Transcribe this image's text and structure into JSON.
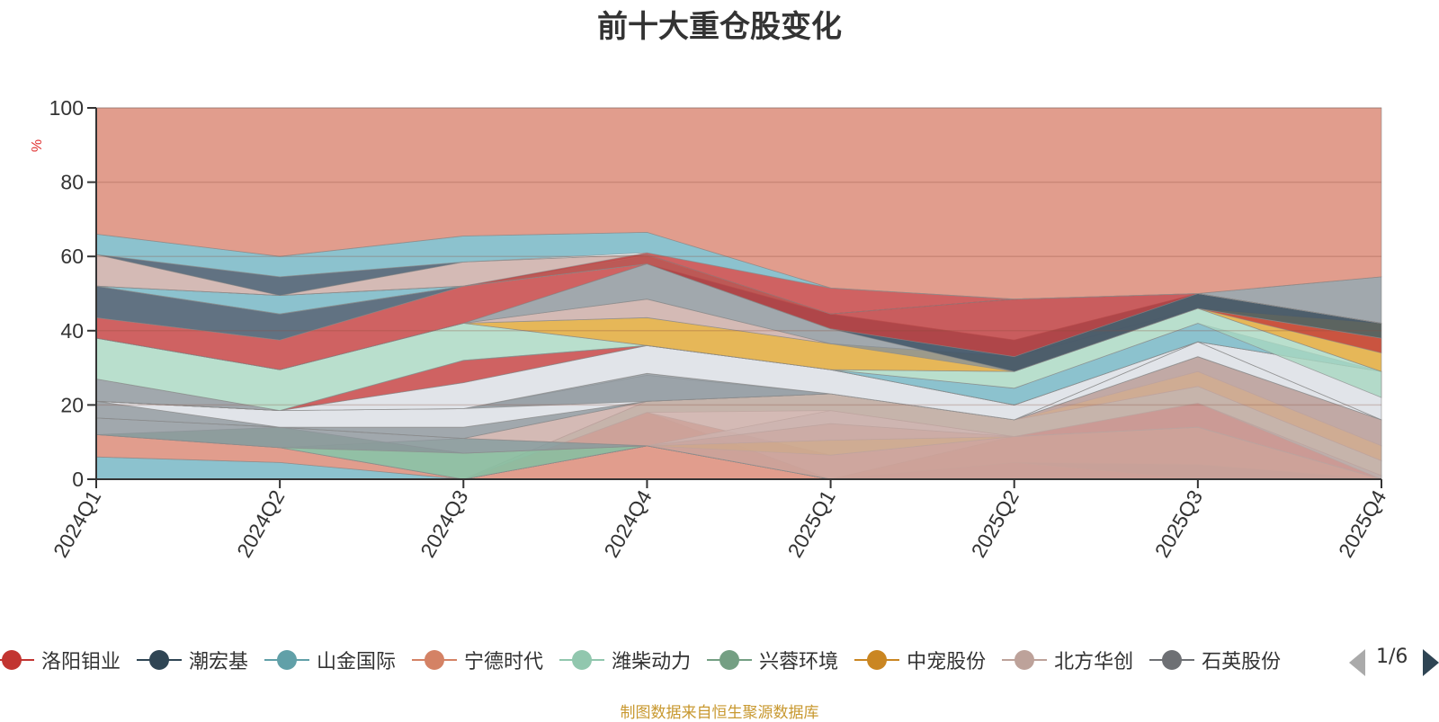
{
  "chart_data": {
    "type": "area",
    "title": "前十大重仓股变化",
    "ylabel": "%",
    "ylim": [
      0,
      100
    ],
    "yticks": [
      0,
      20,
      40,
      60,
      80,
      100
    ],
    "categories": [
      "2024Q1",
      "2024Q2",
      "2024Q3",
      "2024Q4",
      "2025Q1",
      "2025Q2",
      "2025Q3",
      "2025Q4"
    ],
    "grid": true,
    "stacked": true,
    "bands": [
      {
        "color": "#6fb3c2",
        "lower": [
          0,
          0,
          0,
          9,
          0,
          0,
          0,
          0
        ],
        "upper": [
          6,
          4.5,
          0,
          9,
          0,
          0,
          0,
          0
        ]
      },
      {
        "color": "#da8470",
        "lower": [
          6,
          4.5,
          0,
          9,
          0,
          0,
          0,
          0
        ],
        "upper": [
          12,
          8.5,
          0,
          9,
          0,
          0,
          0,
          0
        ]
      },
      {
        "color": "#c33b3b",
        "lower": [
          0,
          0,
          0,
          9,
          0,
          0,
          0,
          0
        ],
        "upper": [
          0,
          0,
          0,
          9,
          0,
          4.5,
          0,
          0
        ]
      },
      {
        "color": "#3a4f63",
        "lower": [
          0,
          0,
          0,
          9,
          0,
          4.5,
          0,
          0
        ],
        "upper": [
          0,
          0,
          0,
          9,
          0,
          4.5,
          4,
          0
        ]
      },
      {
        "color": "#da8470",
        "lower": [
          0,
          0,
          0,
          9,
          0,
          4.5,
          4,
          0
        ],
        "upper": [
          0,
          0,
          0,
          9,
          0,
          11.5,
          14,
          0
        ]
      },
      {
        "color": "#da8470",
        "lower": [
          0,
          0,
          0,
          9,
          0,
          11.5,
          14,
          0
        ],
        "upper": [
          0,
          0,
          0,
          9,
          0,
          11.5,
          14,
          0
        ]
      },
      {
        "color": "#c33b3b",
        "lower": [
          0,
          0,
          0,
          9,
          0,
          11.5,
          14,
          0
        ],
        "upper": [
          0,
          0,
          0,
          9,
          0,
          11.5,
          20.5,
          0
        ]
      },
      {
        "color": "#6fb3c2",
        "lower": [
          0,
          0,
          0,
          9,
          0,
          11.5,
          20.5,
          0
        ],
        "upper": [
          0,
          0,
          0,
          9,
          0,
          11.5,
          20.5,
          1
        ]
      },
      {
        "color": "#da8470",
        "lower": [
          0,
          0,
          0,
          0,
          0,
          0,
          0,
          0
        ],
        "upper": [
          0,
          0,
          0,
          9,
          0,
          0,
          0,
          0
        ]
      },
      {
        "color": "#da8470",
        "lower": [
          0,
          0,
          0,
          9,
          0,
          0,
          0,
          0
        ],
        "upper": [
          0,
          0,
          0,
          18,
          0,
          0,
          0,
          0
        ]
      },
      {
        "color": "#da8470",
        "lower": [
          0,
          0,
          0,
          18,
          0,
          0,
          0,
          0
        ],
        "upper": [
          0,
          0,
          0,
          18,
          0,
          0,
          0,
          0
        ]
      },
      {
        "color": "#da8470",
        "lower": [
          0,
          0,
          0,
          9,
          0,
          0,
          0,
          0
        ],
        "upper": [
          0,
          0,
          0,
          18,
          6.5,
          11.5,
          14,
          0
        ]
      },
      {
        "color": "#e0a52e",
        "lower": [
          0,
          0,
          0,
          9,
          6.5,
          11.5,
          14,
          0
        ],
        "upper": [
          0,
          0,
          0,
          9,
          10.5,
          11.5,
          14,
          0
        ]
      },
      {
        "color": "#c9a9a3",
        "lower": [
          0,
          0,
          0,
          9,
          10.5,
          11.5,
          14,
          0
        ],
        "upper": [
          0,
          0,
          0,
          9,
          15,
          11.5,
          14,
          0
        ]
      },
      {
        "color": "#dadde3",
        "lower": [
          0,
          0,
          0,
          9,
          15,
          11.5,
          14,
          0
        ],
        "upper": [
          0,
          0,
          0,
          9,
          18.5,
          11.5,
          14,
          0
        ]
      },
      {
        "color": "#a7d7c1",
        "lower": [
          0,
          0,
          0,
          18,
          18.5,
          11.5,
          20.5,
          1
        ],
        "upper": [
          0,
          0,
          0,
          21,
          23,
          16,
          25,
          5
        ]
      },
      {
        "color": "#e0a52e",
        "lower": [
          0,
          0,
          0,
          21,
          23,
          16,
          25,
          5
        ],
        "upper": [
          0,
          0,
          0,
          21,
          23,
          16,
          29,
          9
        ]
      },
      {
        "color": "#8a9298",
        "lower": [
          0,
          0,
          0,
          21,
          23,
          16,
          29,
          9
        ],
        "upper": [
          0,
          0,
          0,
          21,
          23,
          16,
          33,
          16
        ]
      },
      {
        "color": "#a7d7c1",
        "lower": [
          12,
          8.5,
          0,
          9,
          0,
          0,
          0,
          0
        ],
        "upper": [
          12,
          8.5,
          11,
          9,
          0,
          0,
          0,
          0
        ]
      },
      {
        "color": "#88b89b",
        "lower": [
          12,
          8.5,
          0,
          9,
          0,
          0,
          0,
          0
        ],
        "upper": [
          12,
          14,
          7,
          9,
          0,
          0,
          0,
          0
        ]
      },
      {
        "color": "#8a9298",
        "lower": [
          12,
          8.5,
          7,
          9,
          0,
          0,
          0,
          0
        ],
        "upper": [
          16.5,
          14,
          11,
          9,
          0,
          0,
          0,
          0
        ]
      },
      {
        "color": "#c9a9a3",
        "lower": [
          16.5,
          14,
          11,
          9,
          0,
          0,
          0,
          0
        ],
        "upper": [
          16.5,
          14,
          11,
          21,
          23,
          16,
          33,
          16
        ]
      },
      {
        "color": "#8a9298",
        "lower": [
          16.5,
          14,
          11,
          21,
          23,
          16,
          33,
          16
        ],
        "upper": [
          21,
          14,
          14,
          21,
          23,
          16,
          33,
          16
        ]
      },
      {
        "color": "#dadde3",
        "lower": [
          21,
          14,
          14,
          21,
          23,
          16,
          33,
          16
        ],
        "upper": [
          21,
          18.5,
          19,
          28,
          23,
          16,
          37,
          16
        ]
      },
      {
        "color": "#8a9298",
        "lower": [
          21,
          18.5,
          19,
          21,
          23,
          16,
          37,
          16
        ],
        "upper": [
          27,
          18.5,
          19,
          28.5,
          23,
          16,
          37,
          16
        ]
      },
      {
        "color": "#dadde3",
        "lower": [
          21,
          18.5,
          19,
          28.5,
          23,
          16,
          37,
          16
        ],
        "upper": [
          21,
          18.5,
          26,
          36,
          29.5,
          20,
          37,
          29
        ]
      },
      {
        "color": "#c33b3b",
        "lower": [
          21,
          18.5,
          26,
          36,
          29.5,
          20,
          37,
          29
        ],
        "upper": [
          21,
          18.5,
          32,
          36,
          29.5,
          20,
          37,
          29
        ]
      },
      {
        "color": "#da8470",
        "lower": [
          21,
          18.5,
          32,
          36,
          29.5,
          20,
          37,
          29
        ],
        "upper": [
          21,
          18.5,
          32,
          36,
          29.5,
          20,
          37,
          29
        ]
      },
      {
        "color": "#6fb3c2",
        "lower": [
          21,
          18.5,
          32,
          36,
          29.5,
          20,
          37,
          29
        ],
        "upper": [
          21,
          18.5,
          32,
          36,
          29.5,
          24.5,
          42,
          29
        ]
      },
      {
        "color": "#a7d7c1",
        "lower": [
          27,
          18.5,
          32,
          36,
          29.5,
          24.5,
          42,
          22
        ],
        "upper": [
          38,
          29.5,
          42,
          36,
          29.5,
          29,
          46,
          29
        ]
      },
      {
        "color": "#e0a52e",
        "lower": [
          38,
          29.5,
          42,
          36,
          29.5,
          29,
          46,
          29
        ],
        "upper": [
          38,
          29.5,
          42,
          43.5,
          36.5,
          33,
          50,
          42
        ]
      },
      {
        "color": "#c9a9a3",
        "lower": [
          38,
          29.5,
          42,
          43.5,
          36.5,
          33,
          50,
          42
        ],
        "upper": [
          38,
          29.5,
          42,
          48.5,
          36.5,
          33,
          50,
          42
        ]
      },
      {
        "color": "#8a9298",
        "lower": [
          38,
          29.5,
          42,
          48.5,
          36.5,
          29,
          46,
          42
        ],
        "upper": [
          38,
          29.5,
          42,
          58,
          40.5,
          33,
          50,
          54.5
        ]
      },
      {
        "color": "#c33b3b",
        "lower": [
          38,
          29.5,
          42,
          58,
          40.5,
          33,
          46,
          34
        ],
        "upper": [
          43.5,
          37.5,
          52,
          58,
          40.5,
          33,
          46,
          38
        ]
      },
      {
        "color": "#3a4f63",
        "lower": [
          43.5,
          37.5,
          52,
          58,
          40.5,
          29,
          46,
          38
        ],
        "upper": [
          52,
          44.5,
          52,
          58,
          44.5,
          37.5,
          50,
          42
        ]
      },
      {
        "color": "#dadde3",
        "lower": [
          52,
          44.5,
          52,
          58,
          44.5,
          37.5,
          50,
          42
        ],
        "upper": [
          52,
          44.5,
          52,
          58,
          44.5,
          48.5,
          50,
          42
        ]
      },
      {
        "color": "#6fb3c2",
        "lower": [
          52,
          44.5,
          52,
          58,
          44.5,
          48.5,
          50,
          42
        ],
        "upper": [
          52,
          49.5,
          52,
          60,
          44.5,
          48.5,
          50,
          42
        ]
      },
      {
        "color": "#a7d7c1",
        "lower": [
          52,
          49.5,
          52,
          58,
          44.5,
          48.5,
          50,
          42
        ],
        "upper": [
          52,
          49.5,
          52,
          60.5,
          44.5,
          48.5,
          50,
          42
        ]
      },
      {
        "color": "#c9a9a3",
        "lower": [
          52,
          49.5,
          52,
          60.5,
          44.5,
          48.5,
          50,
          42
        ],
        "upper": [
          60.5,
          49.5,
          58.5,
          60.5,
          44.5,
          48.5,
          50,
          42
        ]
      },
      {
        "color": "#c33b3b",
        "lower": [
          52,
          49.5,
          52,
          58,
          40.5,
          33,
          50,
          42
        ],
        "upper": [
          52,
          49.5,
          52,
          61,
          51.5,
          48.5,
          50,
          42
        ]
      },
      {
        "color": "#3a4f63",
        "lower": [
          60.5,
          49.5,
          58.5,
          60.5,
          44.5,
          48.5,
          50,
          42
        ],
        "upper": [
          60.5,
          54.5,
          58.5,
          60.5,
          44.5,
          48.5,
          50,
          42
        ]
      },
      {
        "color": "#6fb3c2",
        "lower": [
          60.5,
          54.5,
          58.5,
          61,
          51.5,
          48.5,
          50,
          54.5
        ],
        "upper": [
          66,
          60,
          65.5,
          66.5,
          51.5,
          48.5,
          50,
          54.5
        ]
      },
      {
        "color": "#da8470",
        "lower": [
          66,
          60,
          65.5,
          66.5,
          51.5,
          48.5,
          50,
          54.5
        ],
        "upper": [
          100,
          100,
          100,
          100,
          100,
          100,
          100,
          100
        ]
      }
    ],
    "legend": [
      {
        "name": "洛阳钼业",
        "color": "#c23531"
      },
      {
        "name": "潮宏基",
        "color": "#2f4554"
      },
      {
        "name": "山金国际",
        "color": "#61a0a8"
      },
      {
        "name": "宁德时代",
        "color": "#d48265"
      },
      {
        "name": "潍柴动力",
        "color": "#91c7ae"
      },
      {
        "name": "兴蓉环境",
        "color": "#749f83"
      },
      {
        "name": "中宠股份",
        "color": "#ca8622"
      },
      {
        "name": "北方华创",
        "color": "#bda29a"
      },
      {
        "name": "石英股份",
        "color": "#6e7074"
      }
    ],
    "legend_position": "bottom",
    "legend_page": "1/6"
  },
  "footer_note": "制图数据来自恒生聚源数据库"
}
